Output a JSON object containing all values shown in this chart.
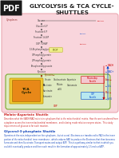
{
  "bg_color": "#ffffff",
  "pdf_bg": "#1a1a1a",
  "pdf_text": "#ffffff",
  "title_text": "GLYCOLYSIS & TCA CYCLE-\nSHUTTLES",
  "title_color": "#222222",
  "title_fontsize": 5.2,
  "outer_bg": "#f9d5dc",
  "outer_edge": "#e8a0aa",
  "mito_bg": "#deeac0",
  "mito_edge": "#7aaa30",
  "tca_yellow": "#f0c830",
  "tca_orange": "#e88818",
  "red": "#cc0000",
  "blue": "#0044cc",
  "dark": "#333333",
  "red_caption": "#cc2222",
  "blue_caption": "#1144bb",
  "pink_label_bg": "#f5c8d0",
  "cyan_label_bg": "#b8e8f0"
}
